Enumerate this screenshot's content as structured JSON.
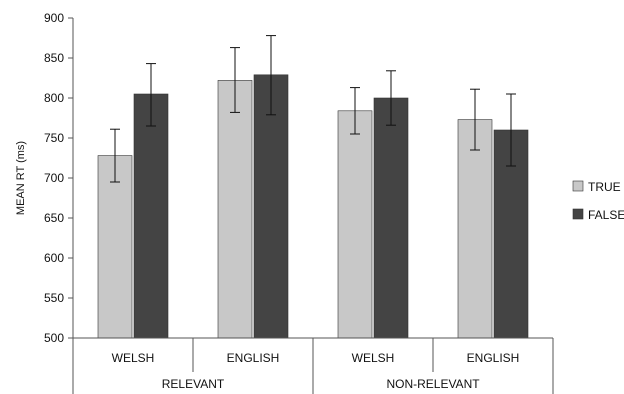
{
  "chart_data": {
    "type": "bar",
    "ylabel": "MEAN RT (ms)",
    "ylim": [
      500,
      900
    ],
    "y_ticks": [
      500,
      550,
      600,
      650,
      700,
      750,
      800,
      850,
      900
    ],
    "groups": [
      "RELEVANT",
      "NON-RELEVANT"
    ],
    "categories": [
      "WELSH",
      "ENGLISH",
      "WELSH",
      "ENGLISH"
    ],
    "category_group": [
      0,
      0,
      1,
      1
    ],
    "series": [
      {
        "name": "TRUE",
        "color": "#c8c8c8",
        "values": [
          728,
          822,
          784,
          773
        ],
        "error_low": [
          695,
          782,
          755,
          735
        ],
        "error_high": [
          761,
          863,
          813,
          811
        ]
      },
      {
        "name": "FALSE",
        "color": "#444444",
        "values": [
          805,
          829,
          800,
          760
        ],
        "error_low": [
          765,
          779,
          766,
          715
        ],
        "error_high": [
          843,
          878,
          834,
          805
        ]
      }
    ],
    "legend_position": "right",
    "grid": false
  }
}
